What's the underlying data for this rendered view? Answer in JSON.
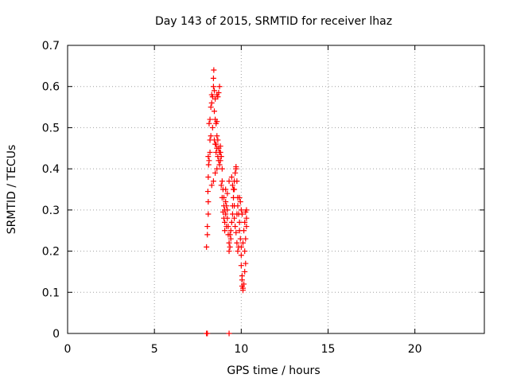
{
  "chart_data": {
    "type": "scatter",
    "title": "Day 143 of 2015, SRMTID for receiver lhaz",
    "xlabel": "GPS time / hours",
    "ylabel": "SRMTID / TECUs",
    "xlim": [
      0,
      24
    ],
    "ylim": [
      0,
      0.7
    ],
    "xticks": [
      0,
      5,
      10,
      15,
      20
    ],
    "yticks": [
      0,
      0.1,
      0.2,
      0.3,
      0.4,
      0.5,
      0.6,
      0.7
    ],
    "grid": true,
    "marker": "+",
    "color": "#ff0000",
    "series": [
      {
        "points": [
          [
            8.0,
            0.21
          ],
          [
            8.05,
            0.24
          ],
          [
            8.05,
            0.26
          ],
          [
            8.1,
            0.29
          ],
          [
            8.1,
            0.32
          ],
          [
            8.08,
            0.345
          ],
          [
            8.1,
            0.38
          ],
          [
            8.12,
            0.41
          ],
          [
            8.1,
            0.43
          ],
          [
            8.15,
            0.42
          ],
          [
            8.2,
            0.44
          ],
          [
            8.2,
            0.47
          ],
          [
            8.25,
            0.48
          ],
          [
            8.15,
            0.51
          ],
          [
            8.2,
            0.52
          ],
          [
            8.25,
            0.55
          ],
          [
            8.3,
            0.56
          ],
          [
            8.3,
            0.58
          ],
          [
            8.35,
            0.575
          ],
          [
            8.4,
            0.6
          ],
          [
            8.4,
            0.62
          ],
          [
            8.42,
            0.64
          ],
          [
            8.45,
            0.59
          ],
          [
            8.5,
            0.57
          ],
          [
            8.45,
            0.54
          ],
          [
            8.5,
            0.52
          ],
          [
            8.55,
            0.51
          ],
          [
            8.6,
            0.515
          ],
          [
            8.6,
            0.48
          ],
          [
            8.5,
            0.46
          ],
          [
            8.55,
            0.44
          ],
          [
            8.6,
            0.45
          ],
          [
            8.65,
            0.43
          ],
          [
            8.7,
            0.45
          ],
          [
            8.7,
            0.42
          ],
          [
            8.75,
            0.41
          ],
          [
            8.8,
            0.44
          ],
          [
            8.8,
            0.455
          ],
          [
            8.85,
            0.43
          ],
          [
            8.65,
            0.575
          ],
          [
            8.7,
            0.585
          ],
          [
            8.75,
            0.6
          ],
          [
            8.6,
            0.58
          ],
          [
            8.5,
            0.39
          ],
          [
            8.6,
            0.4
          ],
          [
            8.4,
            0.37
          ],
          [
            8.3,
            0.36
          ],
          [
            8.9,
            0.4
          ],
          [
            8.9,
            0.37
          ],
          [
            8.95,
            0.35
          ],
          [
            9.0,
            0.33
          ],
          [
            9.0,
            0.31
          ],
          [
            9.05,
            0.3
          ],
          [
            9.0,
            0.28
          ],
          [
            9.05,
            0.27
          ],
          [
            9.1,
            0.29
          ],
          [
            9.1,
            0.32
          ],
          [
            9.15,
            0.31
          ],
          [
            9.2,
            0.3
          ],
          [
            9.2,
            0.28
          ],
          [
            9.25,
            0.26
          ],
          [
            9.25,
            0.24
          ],
          [
            9.3,
            0.22
          ],
          [
            9.3,
            0.2
          ],
          [
            9.35,
            0.21
          ],
          [
            9.4,
            0.23
          ],
          [
            9.4,
            0.25
          ],
          [
            9.45,
            0.27
          ],
          [
            9.5,
            0.29
          ],
          [
            9.5,
            0.31
          ],
          [
            9.55,
            0.33
          ],
          [
            9.6,
            0.35
          ],
          [
            9.6,
            0.37
          ],
          [
            9.65,
            0.39
          ],
          [
            9.7,
            0.4
          ],
          [
            9.7,
            0.405
          ],
          [
            9.75,
            0.37
          ],
          [
            9.8,
            0.33
          ],
          [
            9.8,
            0.31
          ],
          [
            9.85,
            0.29
          ],
          [
            9.9,
            0.27
          ],
          [
            9.9,
            0.25
          ],
          [
            9.95,
            0.23
          ],
          [
            10.0,
            0.21
          ],
          [
            10.0,
            0.19
          ],
          [
            10.0,
            0.165
          ],
          [
            10.05,
            0.14
          ],
          [
            10.05,
            0.13
          ],
          [
            10.05,
            0.115
          ],
          [
            10.1,
            0.105
          ],
          [
            10.1,
            0.11
          ],
          [
            10.15,
            0.12
          ],
          [
            10.2,
            0.15
          ],
          [
            10.25,
            0.17
          ],
          [
            10.2,
            0.2
          ],
          [
            10.25,
            0.23
          ],
          [
            10.3,
            0.26
          ],
          [
            10.3,
            0.28
          ],
          [
            10.3,
            0.3
          ],
          [
            10.25,
            0.295
          ],
          [
            10.2,
            0.27
          ],
          [
            10.15,
            0.25
          ],
          [
            10.1,
            0.22
          ],
          [
            9.5,
            0.36
          ],
          [
            9.45,
            0.38
          ],
          [
            9.55,
            0.35
          ],
          [
            9.3,
            0.37
          ],
          [
            9.2,
            0.34
          ],
          [
            9.1,
            0.35
          ],
          [
            9.6,
            0.28
          ],
          [
            9.65,
            0.26
          ],
          [
            9.7,
            0.245
          ],
          [
            9.75,
            0.22
          ],
          [
            9.8,
            0.2
          ],
          [
            9.85,
            0.21
          ],
          [
            9.95,
            0.32
          ],
          [
            10.0,
            0.3
          ],
          [
            10.05,
            0.29
          ],
          [
            9.9,
            0.33
          ],
          [
            9.35,
            0.24
          ],
          [
            9.15,
            0.26
          ],
          [
            8.95,
            0.295
          ],
          [
            8.9,
            0.33
          ],
          [
            8.85,
            0.36
          ],
          [
            9.05,
            0.25
          ],
          [
            9.6,
            0.31
          ],
          [
            9.75,
            0.29
          ],
          [
            8.35,
            0.5
          ],
          [
            8.45,
            0.47
          ],
          [
            8.55,
            0.46
          ],
          [
            8.65,
            0.47
          ],
          [
            8.75,
            0.44
          ],
          [
            8.8,
            0.42
          ],
          [
            8.05,
            0.0
          ],
          [
            8.0,
            0.0
          ],
          [
            9.3,
            0.0
          ]
        ]
      }
    ]
  }
}
